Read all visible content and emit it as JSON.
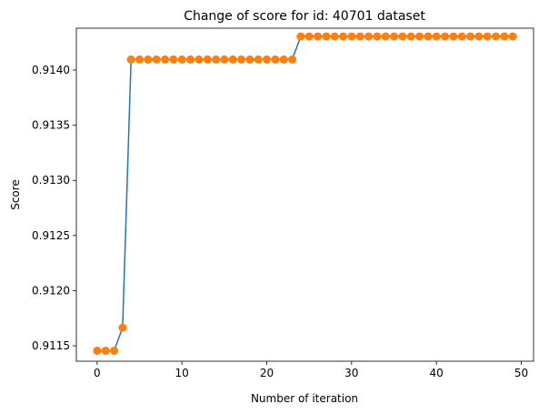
{
  "chart_data": {
    "type": "line",
    "title": "Change of score for id: 40701 dataset",
    "xlabel": "Number of iteration",
    "ylabel": "Score",
    "xlim": [
      -2.45,
      51.45
    ],
    "ylim": [
      0.91136,
      0.91438
    ],
    "xticks": [
      0,
      10,
      20,
      30,
      40,
      50
    ],
    "yticks": [
      0.9115,
      0.912,
      0.9125,
      0.913,
      0.9135,
      0.914
    ],
    "ytick_labels": [
      "0.9115",
      "0.9120",
      "0.9125",
      "0.9130",
      "0.9135",
      "0.9140"
    ],
    "grid": false,
    "line_color": "#1f77b4",
    "marker_color": "#ff7f0e",
    "x": [
      0,
      1,
      2,
      3,
      4,
      5,
      6,
      7,
      8,
      9,
      10,
      11,
      12,
      13,
      14,
      15,
      16,
      17,
      18,
      19,
      20,
      21,
      22,
      23,
      24,
      25,
      26,
      27,
      28,
      29,
      30,
      31,
      32,
      33,
      34,
      35,
      36,
      37,
      38,
      39,
      40,
      41,
      42,
      43,
      44,
      45,
      46,
      47,
      48,
      49
    ],
    "y": [
      0.911455,
      0.911455,
      0.911455,
      0.911664,
      0.914096,
      0.914096,
      0.914096,
      0.914096,
      0.914096,
      0.914096,
      0.914096,
      0.914096,
      0.914096,
      0.914096,
      0.914096,
      0.914096,
      0.914096,
      0.914096,
      0.914096,
      0.914096,
      0.914096,
      0.914096,
      0.914096,
      0.914096,
      0.914305,
      0.914305,
      0.914305,
      0.914305,
      0.914305,
      0.914305,
      0.914305,
      0.914305,
      0.914305,
      0.914305,
      0.914305,
      0.914305,
      0.914305,
      0.914305,
      0.914305,
      0.914305,
      0.914305,
      0.914305,
      0.914305,
      0.914305,
      0.914305,
      0.914305,
      0.914305,
      0.914305,
      0.914305,
      0.914305
    ]
  }
}
